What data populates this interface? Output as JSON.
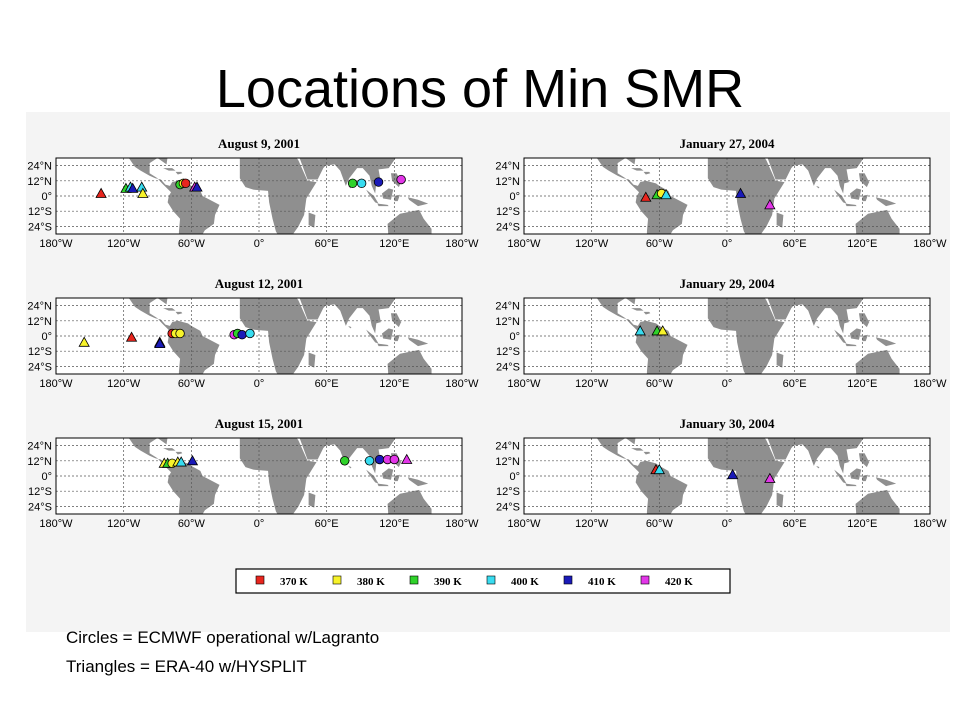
{
  "slide": {
    "title": "Locations of Min SMR",
    "caption_circles": "Circles = ECMWF operational w/Lagranto",
    "caption_triangles": "Triangles = ERA-40 w/HYSPLIT"
  },
  "axes": {
    "x_ticks": [
      "180°W",
      "120°W",
      "60°W",
      "0°",
      "60°E",
      "120°E",
      "180°W"
    ],
    "y_ticks": [
      "24°N",
      "12°N",
      "0°",
      "12°S",
      "24°S"
    ],
    "lon_range": [
      -180,
      180
    ],
    "lat_range": [
      -30,
      30
    ]
  },
  "legend": [
    {
      "label": "370 K",
      "color": "#e8251e"
    },
    {
      "label": "380 K",
      "color": "#f7f32a"
    },
    {
      "label": "390 K",
      "color": "#2fd22a"
    },
    {
      "label": "400 K",
      "color": "#38dcf0"
    },
    {
      "label": "410 K",
      "color": "#1a1ab8"
    },
    {
      "label": "420 K",
      "color": "#e236e8"
    }
  ],
  "maps": [
    {
      "title": "August 9, 2001",
      "markers": [
        {
          "shape": "triangle",
          "level": 0,
          "lon": -140,
          "lat": 2
        },
        {
          "shape": "triangle",
          "level": 2,
          "lon": -118,
          "lat": 6
        },
        {
          "shape": "triangle",
          "level": 3,
          "lon": -114,
          "lat": 7
        },
        {
          "shape": "triangle",
          "level": 4,
          "lon": -112,
          "lat": 6
        },
        {
          "shape": "triangle",
          "level": 3,
          "lon": -104,
          "lat": 7
        },
        {
          "shape": "triangle",
          "level": 1,
          "lon": -103,
          "lat": 2
        },
        {
          "shape": "circle",
          "level": 2,
          "lon": -70,
          "lat": 9
        },
        {
          "shape": "circle",
          "level": 1,
          "lon": -67,
          "lat": 10
        },
        {
          "shape": "circle",
          "level": 0,
          "lon": -65,
          "lat": 10
        },
        {
          "shape": "triangle",
          "level": 5,
          "lon": -57,
          "lat": 7
        },
        {
          "shape": "triangle",
          "level": 4,
          "lon": -55,
          "lat": 7
        },
        {
          "shape": "circle",
          "level": 2,
          "lon": 83,
          "lat": 10
        },
        {
          "shape": "circle",
          "level": 3,
          "lon": 91,
          "lat": 10
        },
        {
          "shape": "circle",
          "level": 4,
          "lon": 106,
          "lat": 11
        },
        {
          "shape": "circle",
          "level": 5,
          "lon": 126,
          "lat": 13
        }
      ]
    },
    {
      "title": "January 27, 2004",
      "markers": [
        {
          "shape": "triangle",
          "level": 0,
          "lon": -72,
          "lat": -1
        },
        {
          "shape": "triangle",
          "level": 2,
          "lon": -62,
          "lat": 1
        },
        {
          "shape": "circle",
          "level": 1,
          "lon": -58,
          "lat": 2
        },
        {
          "shape": "triangle",
          "level": 3,
          "lon": -54,
          "lat": 1
        },
        {
          "shape": "triangle",
          "level": 4,
          "lon": 12,
          "lat": 2
        },
        {
          "shape": "triangle",
          "level": 5,
          "lon": 38,
          "lat": -7
        }
      ]
    },
    {
      "title": "August 12, 2001",
      "markers": [
        {
          "shape": "triangle",
          "level": 1,
          "lon": -155,
          "lat": -5
        },
        {
          "shape": "triangle",
          "level": 0,
          "lon": -113,
          "lat": -1
        },
        {
          "shape": "triangle",
          "level": 5,
          "lon": -88,
          "lat": -5
        },
        {
          "shape": "triangle",
          "level": 4,
          "lon": -88,
          "lat": -6
        },
        {
          "shape": "circle",
          "level": 0,
          "lon": -77,
          "lat": 2
        },
        {
          "shape": "circle",
          "level": 1,
          "lon": -74,
          "lat": 2
        },
        {
          "shape": "circle",
          "level": 1,
          "lon": -70,
          "lat": 2
        },
        {
          "shape": "circle",
          "level": 5,
          "lon": -22,
          "lat": 1
        },
        {
          "shape": "circle",
          "level": 2,
          "lon": -19,
          "lat": 2
        },
        {
          "shape": "circle",
          "level": 4,
          "lon": -15,
          "lat": 1
        },
        {
          "shape": "circle",
          "level": 3,
          "lon": -8,
          "lat": 2
        }
      ]
    },
    {
      "title": "January 29, 2004",
      "markers": [
        {
          "shape": "triangle",
          "level": 3,
          "lon": -77,
          "lat": 4
        },
        {
          "shape": "triangle",
          "level": 2,
          "lon": -62,
          "lat": 4
        },
        {
          "shape": "triangle",
          "level": 1,
          "lon": -57,
          "lat": 4
        }
      ]
    },
    {
      "title": "August 15, 2001",
      "markers": [
        {
          "shape": "triangle",
          "level": 1,
          "lon": -84,
          "lat": 10
        },
        {
          "shape": "triangle",
          "level": 2,
          "lon": -81,
          "lat": 10
        },
        {
          "shape": "circle",
          "level": 1,
          "lon": -77,
          "lat": 10
        },
        {
          "shape": "triangle",
          "level": 1,
          "lon": -72,
          "lat": 11
        },
        {
          "shape": "triangle",
          "level": 3,
          "lon": -69,
          "lat": 11
        },
        {
          "shape": "triangle",
          "level": 4,
          "lon": -59,
          "lat": 12
        },
        {
          "shape": "circle",
          "level": 2,
          "lon": 76,
          "lat": 12
        },
        {
          "shape": "circle",
          "level": 3,
          "lon": 98,
          "lat": 12
        },
        {
          "shape": "circle",
          "level": 4,
          "lon": 107,
          "lat": 13
        },
        {
          "shape": "circle",
          "level": 5,
          "lon": 114,
          "lat": 13
        },
        {
          "shape": "circle",
          "level": 5,
          "lon": 120,
          "lat": 13
        },
        {
          "shape": "triangle",
          "level": 5,
          "lon": 131,
          "lat": 13
        }
      ]
    },
    {
      "title": "January 30, 2004",
      "markers": [
        {
          "shape": "triangle",
          "level": 0,
          "lon": -63,
          "lat": 5
        },
        {
          "shape": "triangle",
          "level": 3,
          "lon": -60,
          "lat": 5
        },
        {
          "shape": "triangle",
          "level": 4,
          "lon": 5,
          "lat": 1
        },
        {
          "shape": "triangle",
          "level": 5,
          "lon": 38,
          "lat": -2
        }
      ]
    }
  ]
}
